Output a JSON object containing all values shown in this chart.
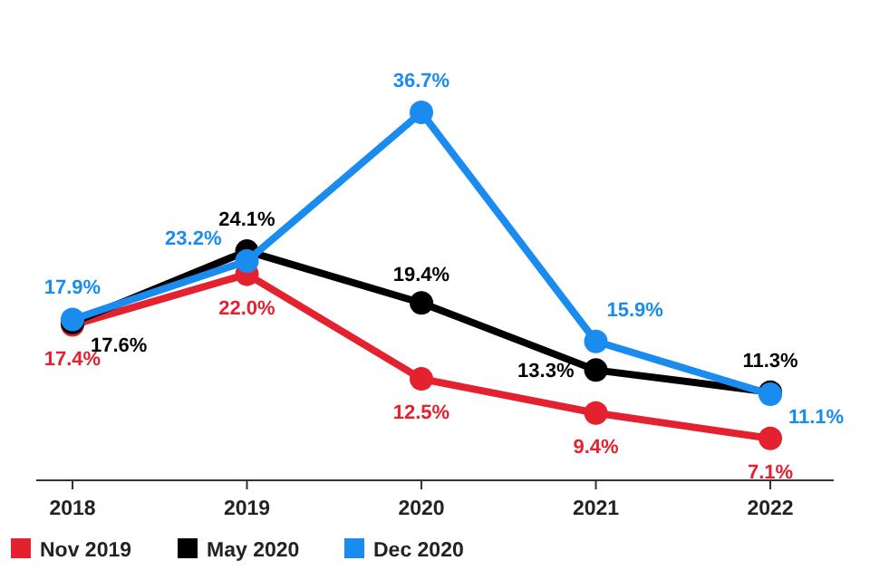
{
  "chart_data": {
    "type": "line",
    "categories": [
      "2018",
      "2019",
      "2020",
      "2021",
      "2022"
    ],
    "series": [
      {
        "name": "Nov 2019",
        "color": "#e3212f",
        "values": [
          17.4,
          22.0,
          12.5,
          9.4,
          7.1
        ],
        "value_labels": [
          "17.4%",
          "22.0%",
          "12.5%",
          "9.4%",
          "7.1%"
        ]
      },
      {
        "name": "May 2020",
        "color": "#000000",
        "values": [
          17.6,
          24.1,
          19.4,
          13.3,
          11.3
        ],
        "value_labels": [
          "17.6%",
          "24.1%",
          "19.4%",
          "13.3%",
          "11.3%"
        ]
      },
      {
        "name": "Dec 2020",
        "color": "#1a8cf0",
        "values": [
          17.9,
          23.2,
          36.7,
          15.9,
          11.1
        ],
        "value_labels": [
          "17.9%",
          "23.2%",
          "36.7%",
          "15.9%",
          "11.1%"
        ]
      }
    ],
    "marker": "circle",
    "line_style": "solid",
    "legend": "bottom"
  }
}
